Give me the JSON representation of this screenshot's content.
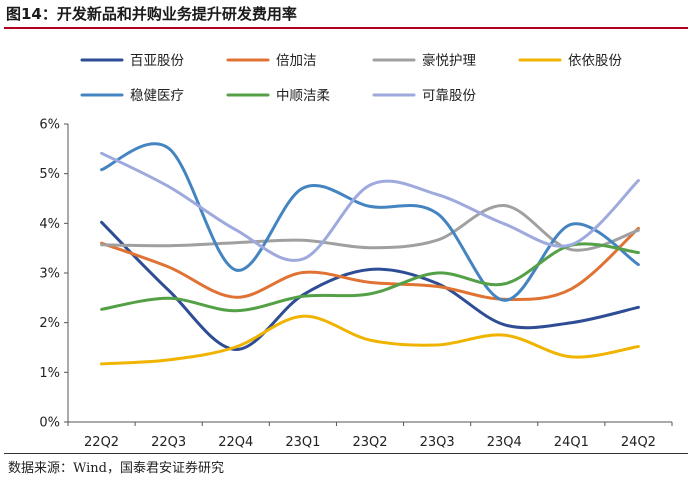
{
  "header": {
    "title": "图14：开发新品和并购业务提升研发费用率"
  },
  "footer": {
    "source": "数据来源：Wind，国泰君安证券研究"
  },
  "chart_data": {
    "type": "line",
    "title": "",
    "xlabel": "",
    "ylabel": "",
    "categories": [
      "22Q2",
      "22Q3",
      "22Q4",
      "23Q1",
      "23Q2",
      "23Q3",
      "23Q4",
      "24Q1",
      "24Q2"
    ],
    "y_ticks": [
      "0%",
      "1%",
      "2%",
      "3%",
      "4%",
      "5%",
      "6%"
    ],
    "ylim": [
      0,
      6
    ],
    "y_unit": "%",
    "smooth": true,
    "grid": false,
    "legend_position": "top",
    "series": [
      {
        "name": "百亚股份",
        "color": "#2e4d94",
        "values": [
          4.02,
          2.65,
          1.46,
          2.56,
          3.07,
          2.79,
          1.96,
          2.0,
          2.31
        ]
      },
      {
        "name": "倍加洁",
        "color": "#e07333",
        "values": [
          3.6,
          3.12,
          2.51,
          3.01,
          2.81,
          2.73,
          2.47,
          2.68,
          3.9
        ]
      },
      {
        "name": "豪悦护理",
        "color": "#a0a0a0",
        "values": [
          3.57,
          3.55,
          3.61,
          3.66,
          3.51,
          3.66,
          4.36,
          3.47,
          3.86
        ]
      },
      {
        "name": "依依股份",
        "color": "#f0b400",
        "values": [
          1.17,
          1.25,
          1.51,
          2.13,
          1.65,
          1.55,
          1.75,
          1.31,
          1.52
        ]
      },
      {
        "name": "稳健医疗",
        "color": "#4384c1",
        "values": [
          5.08,
          5.51,
          3.06,
          4.71,
          4.34,
          4.2,
          2.45,
          3.98,
          3.17
        ]
      },
      {
        "name": "中顺洁柔",
        "color": "#54a046",
        "values": [
          2.27,
          2.49,
          2.24,
          2.53,
          2.58,
          3.0,
          2.78,
          3.56,
          3.41
        ]
      },
      {
        "name": "可靠股份",
        "color": "#9eaade",
        "values": [
          5.41,
          4.74,
          3.87,
          3.28,
          4.77,
          4.58,
          3.99,
          3.57,
          4.86
        ]
      }
    ]
  }
}
